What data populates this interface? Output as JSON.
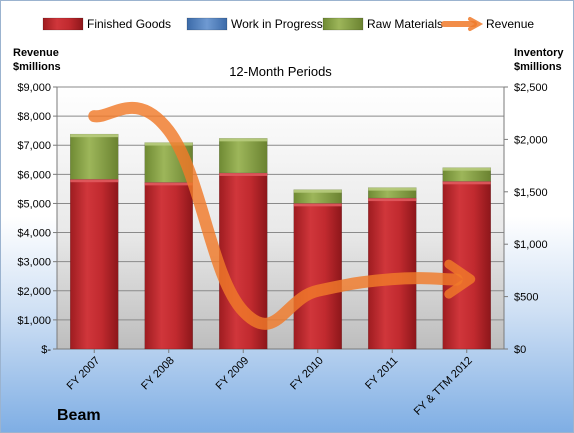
{
  "chart_data": {
    "type": "bar",
    "stacked": true,
    "title": "12-Month Periods",
    "y_left_label": "Revenue $millions",
    "y_left_label_lines": [
      "Revenue",
      "$millions"
    ],
    "y_right_label": "Inventory $millions",
    "y_right_label_lines": [
      "Inventory",
      "$millions"
    ],
    "categories": [
      "FY 2007",
      "FY 2008",
      "FY 2009",
      "FY 2010",
      "FY 2011",
      "FY & TTM 2012"
    ],
    "ylim_left": [
      0,
      9000
    ],
    "ylim_right": [
      0,
      2500
    ],
    "y_left_ticks": [
      0,
      1000,
      2000,
      3000,
      4000,
      5000,
      6000,
      7000,
      8000,
      9000
    ],
    "y_left_tick_labels": [
      "$-",
      "$1,000",
      "$2,000",
      "$3,000",
      "$4,000",
      "$5,000",
      "$6,000",
      "$7,000",
      "$8,000",
      "$9,000"
    ],
    "y_right_ticks": [
      0,
      500,
      1000,
      1500,
      2000,
      2500
    ],
    "y_right_tick_labels": [
      "$0",
      "$500",
      "$1,000",
      "$1,500",
      "$2,000",
      "$2,500"
    ],
    "legend_position": "top",
    "grid": true,
    "series": [
      {
        "name": "Finished Goods",
        "axis": "right",
        "color": "#c0262b",
        "values": [
          1620,
          1590,
          1680,
          1390,
          1440,
          1600
        ]
      },
      {
        "name": "Work in Progress",
        "axis": "right",
        "color": "#4f81bd",
        "values": [
          0,
          0,
          0,
          0,
          0,
          0
        ]
      },
      {
        "name": "Raw Materials",
        "axis": "right",
        "color": "#8fa84a",
        "values": [
          430,
          380,
          330,
          130,
          100,
          130
        ]
      },
      {
        "name": "Revenue",
        "axis": "left",
        "color": "#f07a2a",
        "type": "line",
        "values": [
          8000,
          7500,
          1300,
          2000,
          2400,
          2400
        ]
      }
    ]
  },
  "brand": "Beam"
}
